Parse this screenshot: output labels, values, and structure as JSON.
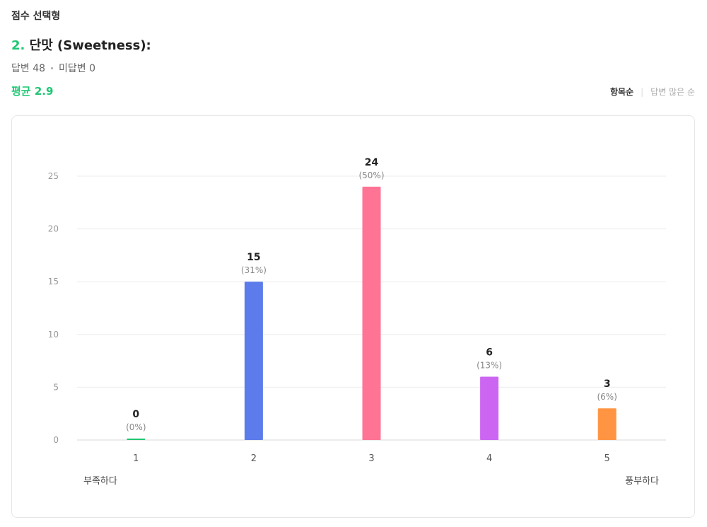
{
  "section_type": "점수 선택형",
  "question": {
    "number": "2.",
    "title": "단맛 (Sweetness):"
  },
  "stats": {
    "answered": "답변 48",
    "unanswered": "미답변 0"
  },
  "average": "평균 2.9",
  "sort": {
    "active": "항목순",
    "inactive": "답변 많은 순"
  },
  "scale_labels": {
    "low": "부족하다",
    "high": "풍부하다"
  },
  "colors": {
    "accent": "#1ec773",
    "bar_1": "#1ec773",
    "bar_2": "#5b7cea",
    "bar_3": "#ff7494",
    "bar_4": "#cc66f2",
    "bar_5": "#ff9543"
  },
  "chart_data": {
    "type": "bar",
    "categories": [
      "1",
      "2",
      "3",
      "4",
      "5"
    ],
    "values": [
      0,
      15,
      24,
      6,
      3
    ],
    "percent_labels": [
      "(0%)",
      "(31%)",
      "(50%)",
      "(13%)",
      "(6%)"
    ],
    "colors": [
      "#1ec773",
      "#5b7cea",
      "#ff7494",
      "#cc66f2",
      "#ff9543"
    ],
    "y_ticks": [
      0,
      5,
      10,
      15,
      20,
      25
    ],
    "ylim": [
      0,
      25
    ],
    "grid": true,
    "xlabel": "",
    "ylabel": "",
    "title": ""
  }
}
